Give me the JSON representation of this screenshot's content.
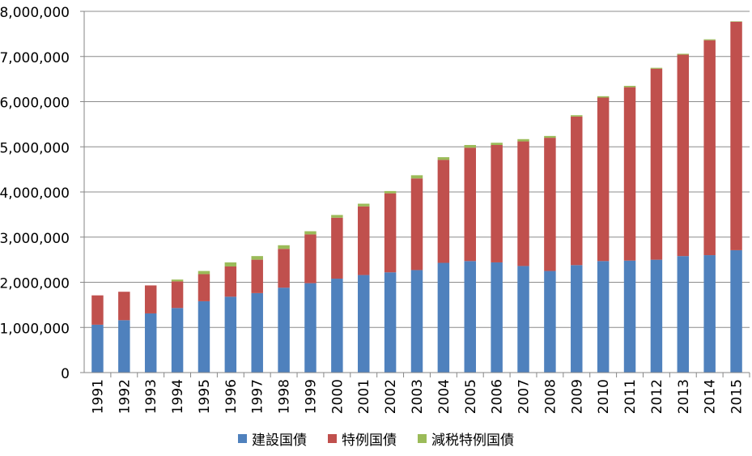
{
  "chart_data": {
    "type": "bar",
    "stacked": true,
    "categories": [
      "1991",
      "1992",
      "1993",
      "1994",
      "1995",
      "1996",
      "1997",
      "1998",
      "1999",
      "2000",
      "2001",
      "2002",
      "2003",
      "2004",
      "2005",
      "2006",
      "2007",
      "2008",
      "2009",
      "2010",
      "2011",
      "2012",
      "2013",
      "2014",
      "2015"
    ],
    "series": [
      {
        "name": "建設国債",
        "color": "#4f81bd",
        "values": [
          1060000,
          1160000,
          1310000,
          1430000,
          1580000,
          1680000,
          1760000,
          1880000,
          1980000,
          2080000,
          2160000,
          2220000,
          2270000,
          2430000,
          2470000,
          2440000,
          2360000,
          2250000,
          2380000,
          2470000,
          2480000,
          2500000,
          2580000,
          2600000,
          2710000
        ]
      },
      {
        "name": "特例国債",
        "color": "#c0504d",
        "values": [
          650000,
          630000,
          620000,
          590000,
          600000,
          670000,
          740000,
          860000,
          1080000,
          1350000,
          1520000,
          1750000,
          2030000,
          2280000,
          2510000,
          2600000,
          2760000,
          2950000,
          3290000,
          3620000,
          3840000,
          4230000,
          4460000,
          4760000,
          5060000
        ]
      },
      {
        "name": "減税特例国債",
        "color": "#9bbb59",
        "values": [
          0,
          0,
          0,
          40000,
          70000,
          90000,
          80000,
          80000,
          70000,
          60000,
          60000,
          50000,
          70000,
          60000,
          60000,
          50000,
          50000,
          40000,
          30000,
          30000,
          30000,
          20000,
          20000,
          20000,
          10000
        ]
      }
    ],
    "yticks": [
      "0",
      "1,000,000",
      "2,000,000",
      "3,000,000",
      "4,000,000",
      "5,000,000",
      "6,000,000",
      "7,000,000",
      "8,000,000"
    ],
    "ylim": [
      0,
      8000000
    ],
    "grid": true,
    "legend_position": "bottom",
    "title": "",
    "xlabel": "",
    "ylabel": ""
  }
}
